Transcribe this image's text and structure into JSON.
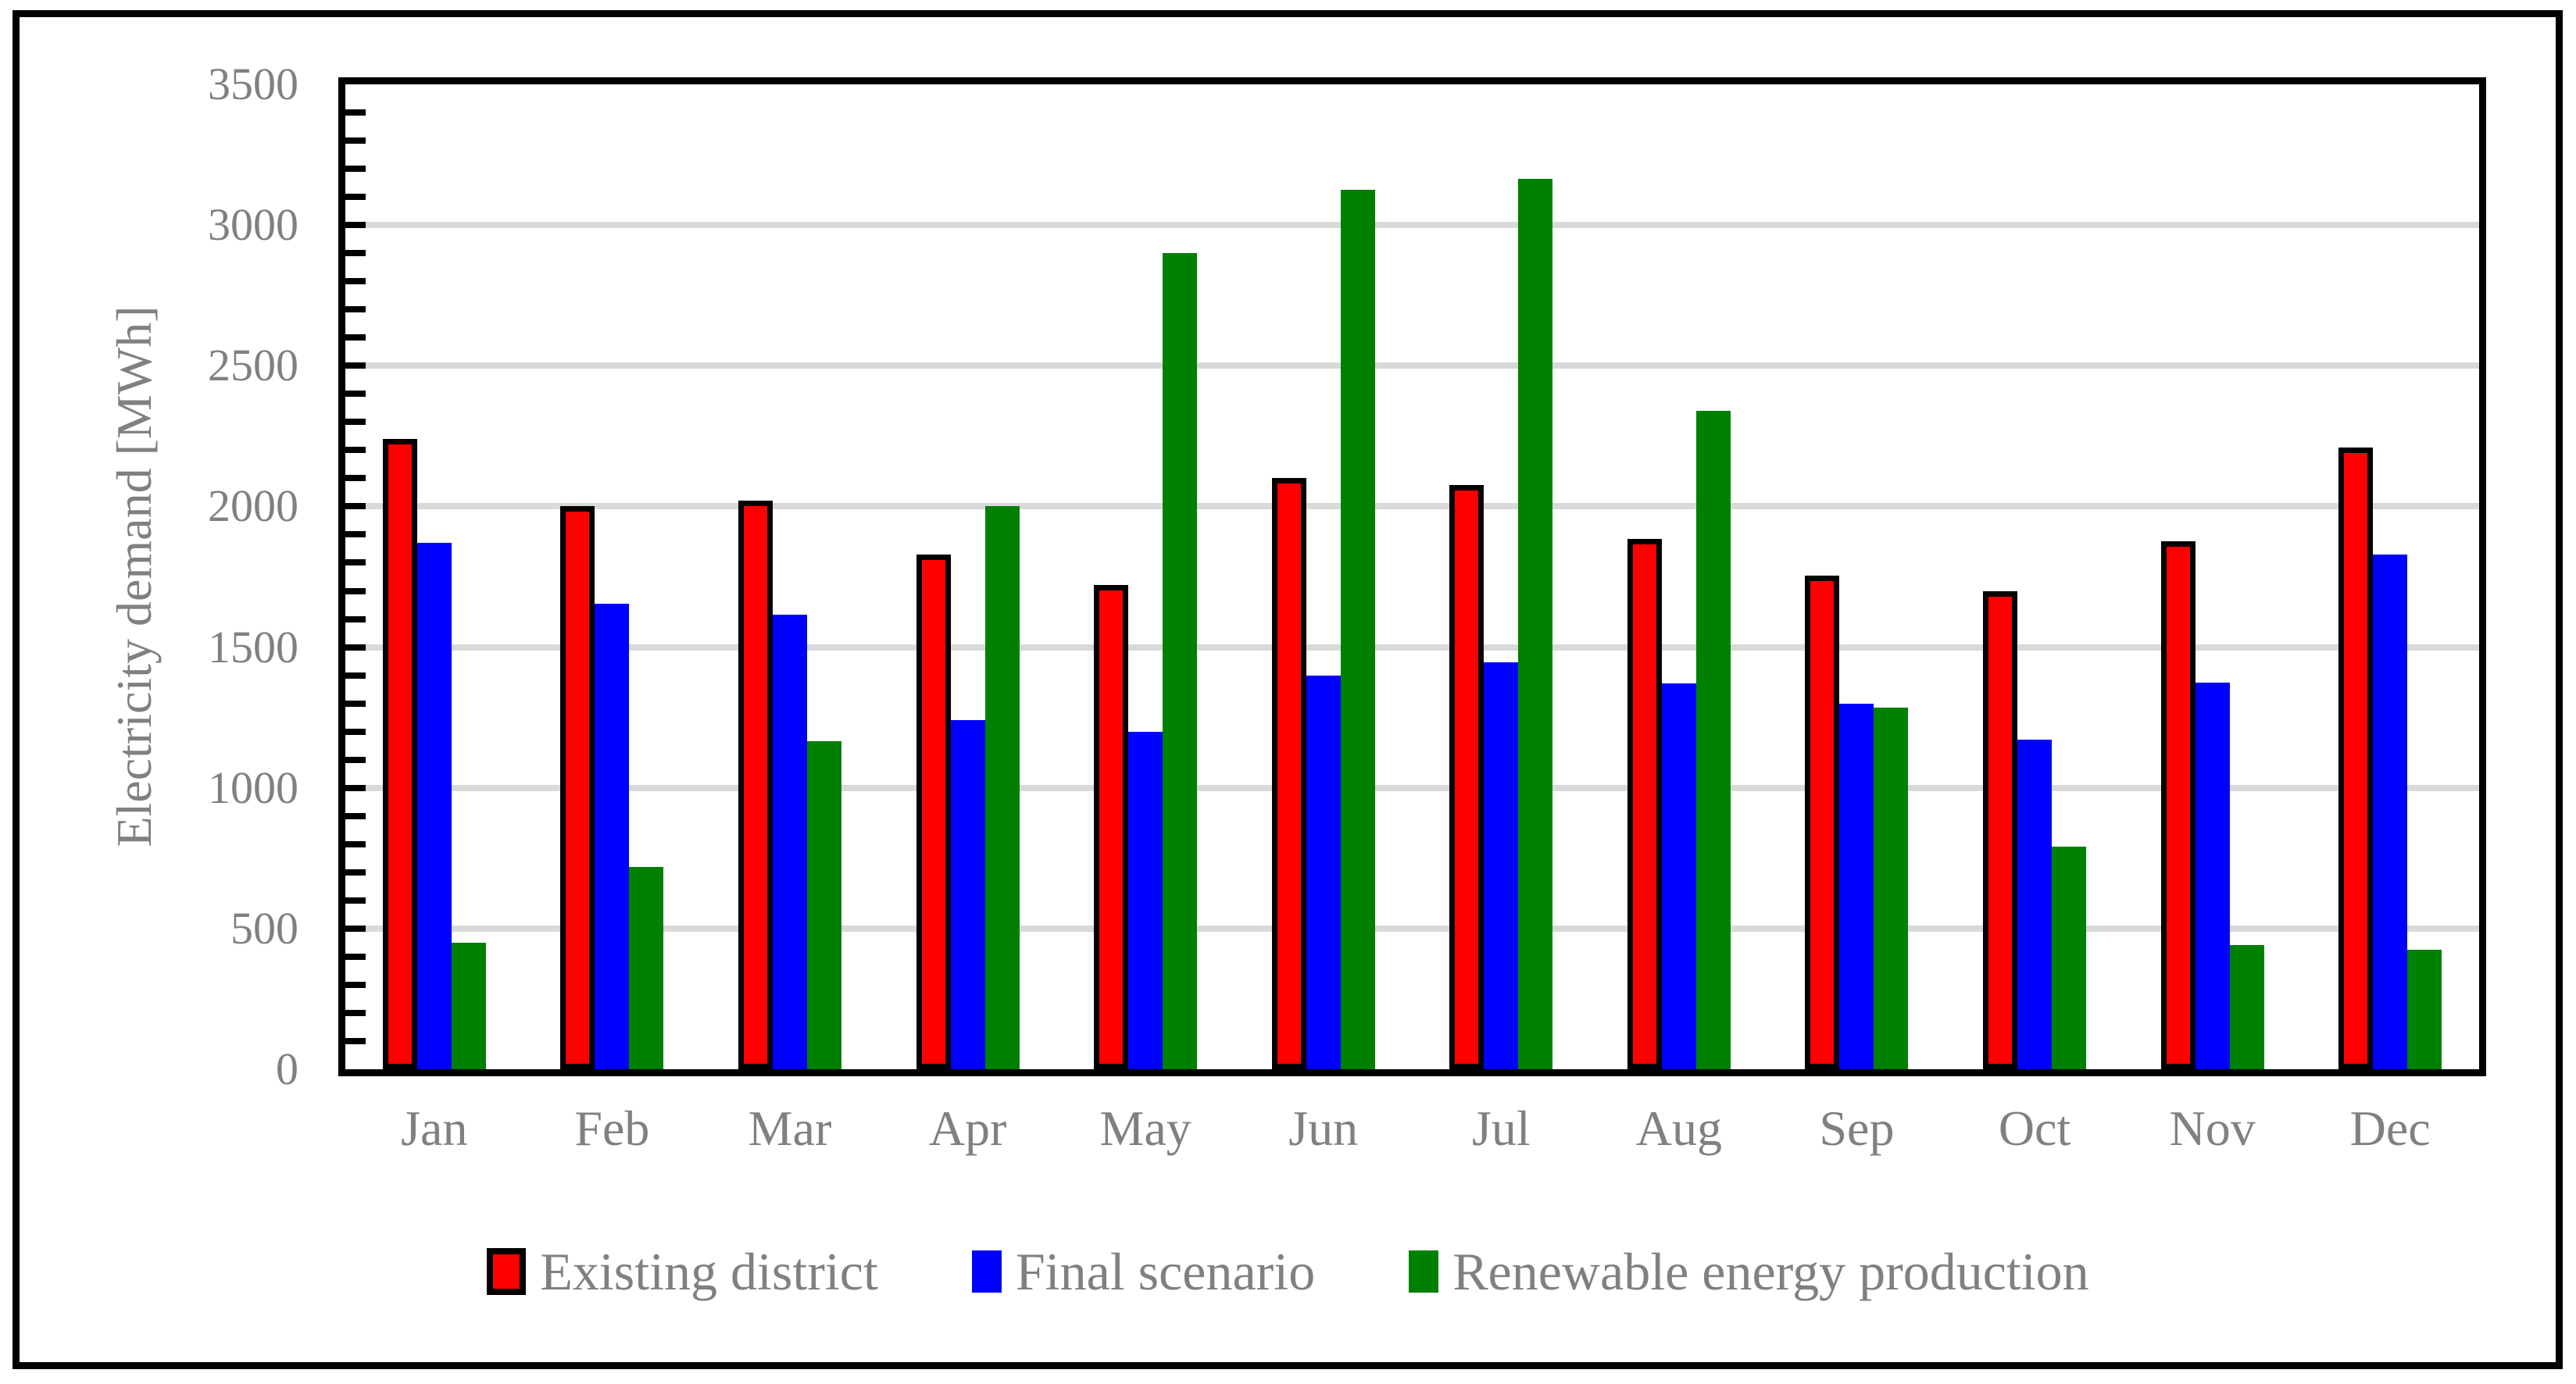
{
  "chart_data": {
    "type": "bar",
    "title": "",
    "xlabel": "",
    "ylabel": "Electricity demand [MWh]",
    "ylim": [
      0,
      3500
    ],
    "y_major_tick_step": 500,
    "y_minor_tick_step": 100,
    "y_tick_labels": [
      "0",
      "500",
      "1000",
      "1500",
      "2000",
      "2500",
      "3000",
      "3500"
    ],
    "grid": "horizontal-major",
    "legend_position": "bottom",
    "categories": [
      "Jan",
      "Feb",
      "Mar",
      "Apr",
      "May",
      "Jun",
      "Jul",
      "Aug",
      "Sep",
      "Oct",
      "Nov",
      "Dec"
    ],
    "series": [
      {
        "name": "Existing district",
        "color": "#FF0000",
        "outline": "#000000",
        "values": [
          2240,
          2000,
          2020,
          1830,
          1720,
          2100,
          2075,
          1885,
          1755,
          1700,
          1875,
          2210
        ]
      },
      {
        "name": "Final scenario",
        "color": "#0000FF",
        "values": [
          1870,
          1655,
          1615,
          1240,
          1200,
          1400,
          1445,
          1370,
          1300,
          1170,
          1375,
          1830
        ]
      },
      {
        "name": "Renewable energy production",
        "color": "#008000",
        "values": [
          450,
          720,
          1165,
          2000,
          2900,
          3125,
          3165,
          2340,
          1285,
          790,
          440,
          425
        ]
      }
    ]
  },
  "colors": {
    "gridline": "#D9D9D9",
    "axis": "#000000",
    "text": "#808080",
    "background": "#FFFFFF"
  }
}
